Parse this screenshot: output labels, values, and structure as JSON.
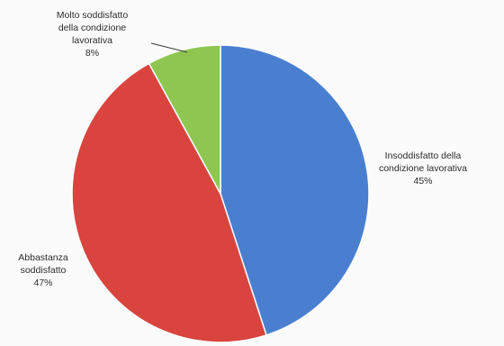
{
  "chart_data": {
    "type": "pie",
    "title": "",
    "categories": [
      "Insoddisfatto della condizione lavorativa",
      "Abbastanza soddisfatto",
      "Molto soddisfatto della condizione lavorativa"
    ],
    "values": [
      45,
      47,
      8
    ],
    "percent_labels": [
      "45%",
      "47%",
      "8%"
    ],
    "colors": [
      "#4a7fd0",
      "#d9443f",
      "#8ec651"
    ],
    "start_angle_deg": 0,
    "direction": "clockwise",
    "legend": "none",
    "label_lines": {
      "slice_0": [
        "Insoddisfatto della",
        "condizione lavorativa",
        "45%"
      ],
      "slice_1": [
        "Abbastanza",
        "soddisfatto",
        "47%"
      ],
      "slice_2": [
        "Molto soddisfatto",
        "della condizione",
        "lavorativa",
        "8%"
      ]
    }
  }
}
